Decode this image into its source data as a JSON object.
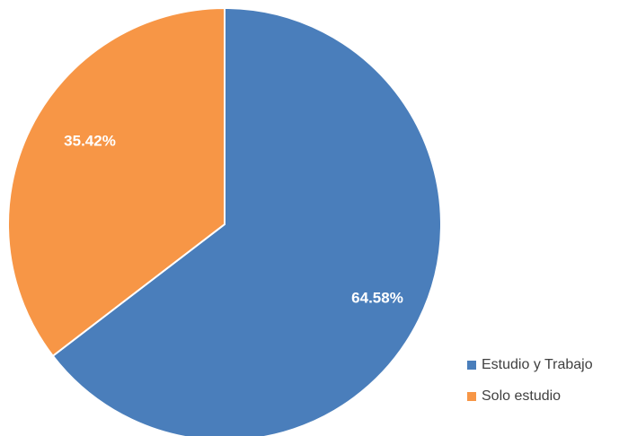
{
  "chart_data": {
    "type": "pie",
    "title": "",
    "categories": [
      "Estudio y Trabajo",
      "Solo estudio"
    ],
    "values": [
      64.58,
      35.42
    ],
    "labels": [
      "64.58%",
      "35.42%"
    ],
    "colors": [
      "#4a7ebb",
      "#f79646"
    ],
    "start_angle_deg": 0,
    "direction": "clockwise",
    "legend_placement": "bottom-right"
  }
}
